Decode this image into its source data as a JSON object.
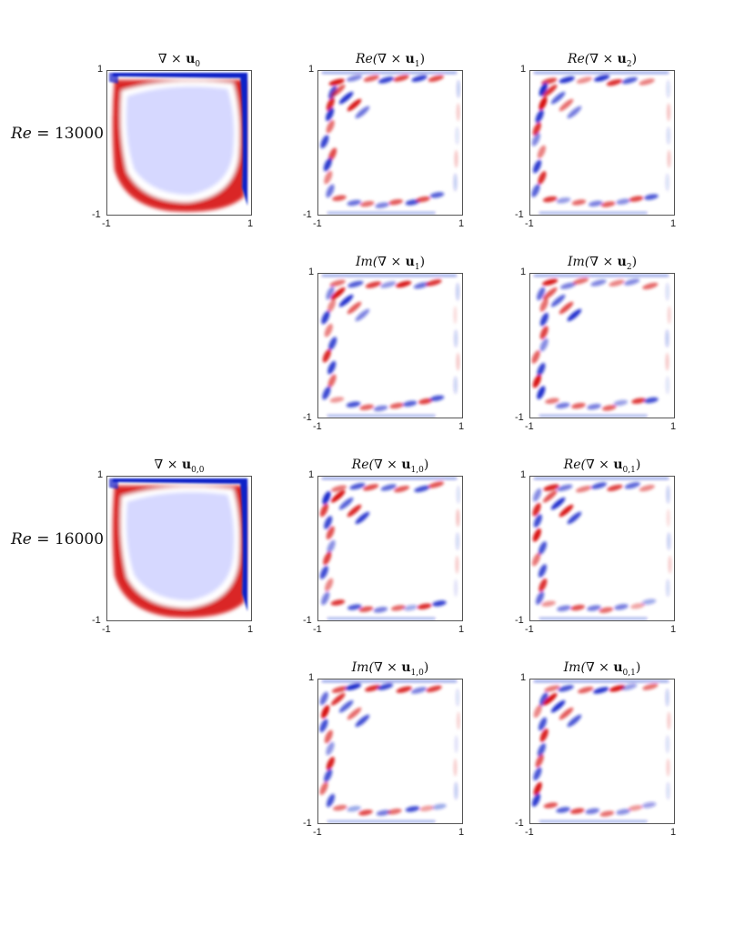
{
  "rows": [
    {
      "label_var": "Re",
      "label_eq": " = ",
      "label_val": "13000"
    },
    {
      "label_var": "Re",
      "label_eq": " = ",
      "label_val": "16000"
    }
  ],
  "panels": [
    {
      "pre": "",
      "op": "∇ × ",
      "u": "u",
      "sub": "0",
      "post": ""
    },
    {
      "pre": "Re(",
      "op": "∇ × ",
      "u": "u",
      "sub": "1",
      "post": ")"
    },
    {
      "pre": "Re(",
      "op": "∇ × ",
      "u": "u",
      "sub": "2",
      "post": ")"
    },
    {
      "pre": "Im(",
      "op": "∇ × ",
      "u": "u",
      "sub": "1",
      "post": ")"
    },
    {
      "pre": "Im(",
      "op": "∇ × ",
      "u": "u",
      "sub": "2",
      "post": ")"
    },
    {
      "pre": "",
      "op": "∇ × ",
      "u": "u",
      "sub": "0,0",
      "post": ""
    },
    {
      "pre": "Re(",
      "op": "∇ × ",
      "u": "u",
      "sub": "1,0",
      "post": ")"
    },
    {
      "pre": "Re(",
      "op": "∇ × ",
      "u": "u",
      "sub": "0,1",
      "post": ")"
    },
    {
      "pre": "Im(",
      "op": "∇ × ",
      "u": "u",
      "sub": "1,0",
      "post": ")"
    },
    {
      "pre": "Im(",
      "op": "∇ × ",
      "u": "u",
      "sub": "0,1",
      "post": ")"
    }
  ],
  "axis": {
    "min_label": "-1",
    "max_label": "1"
  },
  "colors": {
    "positive": "#d40000",
    "negative": "#1020c8",
    "core": "#d6d8ff"
  }
}
